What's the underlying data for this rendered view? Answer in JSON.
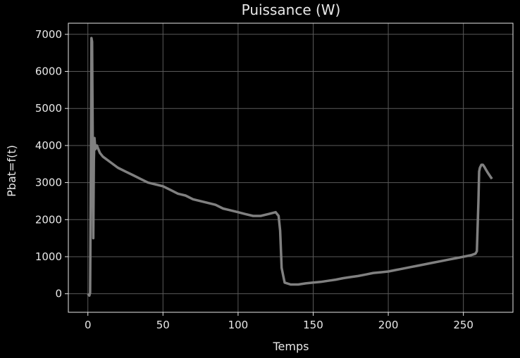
{
  "chart_data": {
    "type": "line",
    "title": "Puissance (W)",
    "xlabel": "Temps",
    "ylabel": "Pbat=f(t)",
    "xlim": [
      -13,
      283
    ],
    "ylim": [
      -500,
      7300
    ],
    "xticks": [
      0,
      50,
      100,
      150,
      200,
      250
    ],
    "yticks": [
      0,
      1000,
      2000,
      3000,
      4000,
      5000,
      6000,
      7000
    ],
    "grid": true,
    "background": "#000000",
    "axes_color": "#e8e8e8",
    "grid_color": "#5a5a5a",
    "series": [
      {
        "color": "#808080",
        "x": [
          0,
          1,
          1.5,
          2,
          2.4,
          2.8,
          3.2,
          3.6,
          4,
          4.4,
          5,
          6,
          8,
          10,
          15,
          20,
          25,
          30,
          35,
          40,
          45,
          50,
          55,
          60,
          65,
          70,
          75,
          80,
          85,
          90,
          95,
          100,
          105,
          110,
          115,
          120,
          125,
          127,
          128,
          129,
          130,
          131,
          135,
          140,
          145,
          150,
          155,
          160,
          165,
          170,
          175,
          180,
          185,
          190,
          195,
          200,
          205,
          210,
          215,
          220,
          225,
          230,
          235,
          240,
          245,
          250,
          255,
          258,
          259,
          260,
          260.5,
          261,
          262,
          263,
          264,
          265,
          266,
          267,
          268,
          269
        ],
        "y": [
          0,
          -50,
          30,
          3500,
          6900,
          6800,
          4500,
          1500,
          3600,
          4200,
          3900,
          4000,
          3800,
          3700,
          3550,
          3400,
          3300,
          3200,
          3100,
          3000,
          2950,
          2900,
          2800,
          2700,
          2650,
          2550,
          2500,
          2450,
          2400,
          2300,
          2250,
          2200,
          2150,
          2100,
          2100,
          2150,
          2200,
          2100,
          1700,
          700,
          500,
          300,
          250,
          250,
          280,
          300,
          320,
          350,
          380,
          420,
          450,
          480,
          520,
          560,
          580,
          600,
          640,
          680,
          720,
          760,
          800,
          840,
          880,
          920,
          960,
          1000,
          1040,
          1080,
          1150,
          2500,
          3300,
          3400,
          3480,
          3480,
          3420,
          3350,
          3280,
          3220,
          3160,
          3100
        ]
      }
    ]
  }
}
